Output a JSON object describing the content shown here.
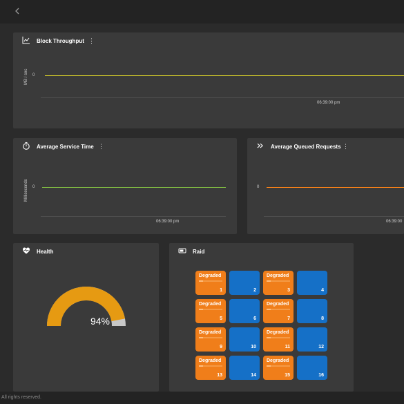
{
  "header": {
    "back_icon": "chevron-left-icon"
  },
  "block_throughput": {
    "title": "Block Throughput",
    "icon": "line-chart-icon",
    "ylabel": "MB / sec",
    "y_tick": "0",
    "x_tick": "06:39:00 pm",
    "line_color": "#c9c22a"
  },
  "avg_service_time": {
    "title": "Average Service Time",
    "icon": "stopwatch-icon",
    "ylabel": "Milliseconds",
    "y_tick": "0",
    "x_tick": "06:39:00 pm",
    "line_color": "#7cb342"
  },
  "avg_queued_requests": {
    "title": "Average Queued Requests",
    "icon": "double-chevron-right-icon",
    "y_tick": "0",
    "x_tick": "06:39:00",
    "line_color": "#f07e1a"
  },
  "health": {
    "title": "Health",
    "icon": "heart-pulse-icon",
    "percent_label": "94%",
    "percent_value": 0.94,
    "gauge_color": "#e69a12",
    "gauge_rest_color": "#c8c8c8"
  },
  "raid": {
    "title": "Raid",
    "icon": "drive-icon",
    "disks": [
      {
        "num": "1",
        "status": "Degraded"
      },
      {
        "num": "2",
        "status": ""
      },
      {
        "num": "3",
        "status": "Degraded"
      },
      {
        "num": "4",
        "status": ""
      },
      {
        "num": "5",
        "status": "Degraded"
      },
      {
        "num": "6",
        "status": ""
      },
      {
        "num": "7",
        "status": "Degraded"
      },
      {
        "num": "8",
        "status": ""
      },
      {
        "num": "9",
        "status": "Degraded"
      },
      {
        "num": "10",
        "status": ""
      },
      {
        "num": "11",
        "status": "Degraded"
      },
      {
        "num": "12",
        "status": ""
      },
      {
        "num": "13",
        "status": "Degraded"
      },
      {
        "num": "14",
        "status": ""
      },
      {
        "num": "15",
        "status": "Degraded"
      },
      {
        "num": "16",
        "status": ""
      }
    ]
  },
  "footer": {
    "text": "All rights reserved."
  }
}
